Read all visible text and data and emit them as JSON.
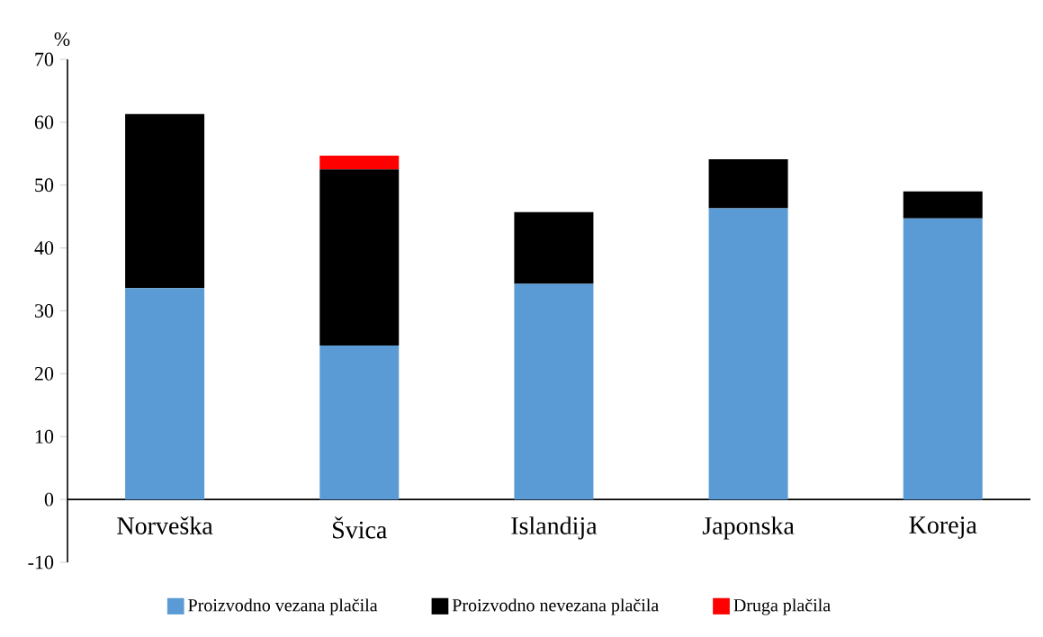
{
  "chart_data": {
    "type": "bar",
    "stacked": true,
    "ylabel": "%",
    "categories": [
      "Norveška",
      "Švica",
      "Islandija",
      "Japonska",
      "Koreja"
    ],
    "series": [
      {
        "name": "Proizvodno vezana plačila",
        "color": "#5b9bd5",
        "values": [
          33.6,
          24.5,
          34.3,
          46.3,
          44.7
        ]
      },
      {
        "name": "Proizvodno nevezana plačila",
        "color": "#000000",
        "values": [
          27.7,
          28.0,
          11.4,
          7.8,
          4.3
        ]
      },
      {
        "name": "Druga plačila",
        "color": "#ff0000",
        "values": [
          null,
          2.2,
          null,
          null,
          null
        ]
      }
    ],
    "ylim": [
      -10,
      70
    ],
    "yticks": [
      -10,
      0,
      10,
      20,
      30,
      40,
      50,
      60,
      70
    ],
    "legend": "bottom",
    "grid": false
  }
}
